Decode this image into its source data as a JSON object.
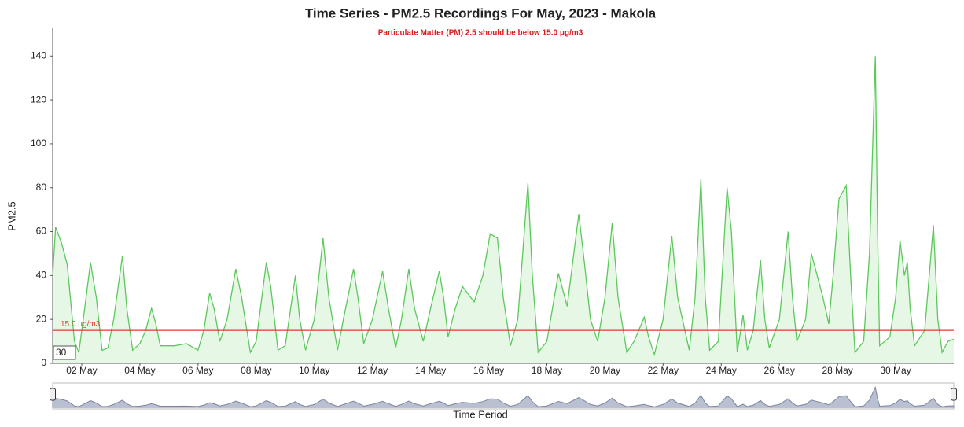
{
  "chart_data": {
    "type": "line",
    "title": "Time Series - PM2.5 Recordings For May, 2023 - Makola",
    "subtitle": "Particulate Matter (PM) 2.5 should be below 15.0 μg/m3",
    "y_label": "PM2.5",
    "x_label": "Time Period",
    "threshold": {
      "value": 15,
      "label": "15.0 μg/m3",
      "color": "#e03c31"
    },
    "rolling_period": "30",
    "color": "#5cc85c",
    "fill": "#e6f7e6",
    "x": [
      1.0,
      1.1,
      1.3,
      1.5,
      1.75,
      1.9,
      2.1,
      2.3,
      2.5,
      2.7,
      2.9,
      3.1,
      3.4,
      3.55,
      3.75,
      4.0,
      4.2,
      4.4,
      4.55,
      4.7,
      5.2,
      5.6,
      6.0,
      6.2,
      6.4,
      6.55,
      6.75,
      7.0,
      7.3,
      7.5,
      7.8,
      8.0,
      8.35,
      8.5,
      8.75,
      9.0,
      9.35,
      9.5,
      9.7,
      10.0,
      10.3,
      10.5,
      10.8,
      11.0,
      11.35,
      11.5,
      11.7,
      12.0,
      12.35,
      12.55,
      12.8,
      13.0,
      13.25,
      13.45,
      13.75,
      14.0,
      14.3,
      14.45,
      14.6,
      14.85,
      15.1,
      15.5,
      15.8,
      16.05,
      16.3,
      16.5,
      16.75,
      17.0,
      17.35,
      17.5,
      17.7,
      18.0,
      18.4,
      18.7,
      19.1,
      19.3,
      19.5,
      19.75,
      20.0,
      20.25,
      20.45,
      20.75,
      21.0,
      21.35,
      21.5,
      21.7,
      22.0,
      22.3,
      22.5,
      22.9,
      23.1,
      23.3,
      23.45,
      23.6,
      23.9,
      24.2,
      24.35,
      24.55,
      24.75,
      24.9,
      25.1,
      25.35,
      25.5,
      25.65,
      26.0,
      26.3,
      26.45,
      26.6,
      26.9,
      27.1,
      27.3,
      27.5,
      27.7,
      27.85,
      28.05,
      28.3,
      28.45,
      28.6,
      28.9,
      29.1,
      29.3,
      29.38,
      29.45,
      29.8,
      30.0,
      30.15,
      30.3,
      30.4,
      30.5,
      30.65,
      31.0,
      31.3,
      31.45,
      31.6,
      31.8,
      32.0
    ],
    "values": [
      40,
      62,
      55,
      45,
      10,
      5,
      25,
      46,
      30,
      6,
      7,
      20,
      49,
      25,
      6,
      9,
      15,
      25,
      18,
      8,
      8,
      9,
      6,
      15,
      32,
      25,
      10,
      20,
      43,
      30,
      5,
      10,
      46,
      35,
      6,
      8,
      40,
      20,
      6,
      20,
      57,
      30,
      6,
      20,
      43,
      30,
      9,
      20,
      42,
      25,
      7,
      20,
      43,
      25,
      10,
      25,
      42,
      30,
      12,
      25,
      35,
      28,
      40,
      59,
      57,
      30,
      8,
      20,
      82,
      40,
      5,
      10,
      41,
      26,
      68,
      45,
      20,
      10,
      30,
      64,
      30,
      5,
      10,
      21,
      12,
      4,
      20,
      58,
      30,
      6,
      30,
      84,
      30,
      6,
      10,
      80,
      60,
      5,
      22,
      6,
      15,
      47,
      20,
      7,
      20,
      60,
      30,
      10,
      20,
      50,
      40,
      30,
      18,
      40,
      75,
      81,
      40,
      5,
      10,
      50,
      140,
      60,
      8,
      12,
      30,
      56,
      40,
      46,
      25,
      8,
      15,
      63,
      20,
      5,
      10,
      11
    ],
    "xlim": [
      1,
      32
    ],
    "ylim": [
      0,
      153
    ],
    "xticks": [
      {
        "value": 2,
        "label": "02 May"
      },
      {
        "value": 4,
        "label": "04 May"
      },
      {
        "value": 6,
        "label": "06 May"
      },
      {
        "value": 8,
        "label": "08 May"
      },
      {
        "value": 10,
        "label": "10 May"
      },
      {
        "value": 12,
        "label": "12 May"
      },
      {
        "value": 14,
        "label": "14 May"
      },
      {
        "value": 16,
        "label": "16 May"
      },
      {
        "value": 18,
        "label": "18 May"
      },
      {
        "value": 20,
        "label": "20 May"
      },
      {
        "value": 22,
        "label": "22 May"
      },
      {
        "value": 24,
        "label": "24 May"
      },
      {
        "value": 26,
        "label": "26 May"
      },
      {
        "value": 28,
        "label": "28 May"
      },
      {
        "value": 30,
        "label": "30 May"
      }
    ],
    "yticks": [
      0,
      20,
      40,
      60,
      80,
      100,
      120,
      140
    ],
    "grid": false
  }
}
